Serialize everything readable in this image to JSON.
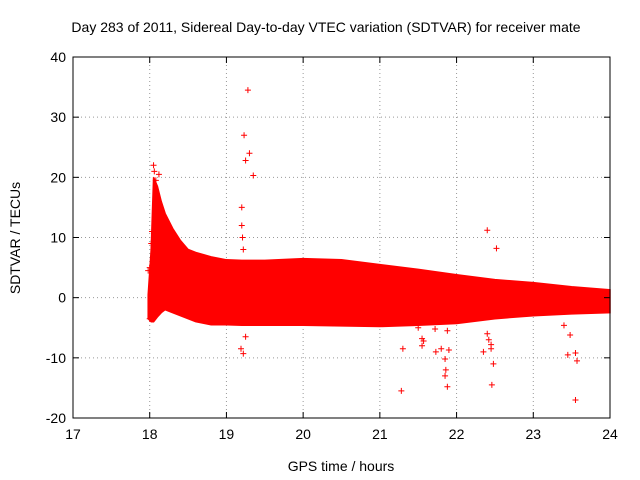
{
  "chart_data": {
    "type": "scatter",
    "title": "Day 283 of 2011, Sidereal Day-to-day VTEC variation (SDTVAR) for receiver mate",
    "xlabel": "GPS time / hours",
    "ylabel": "SDTVAR / TECUs",
    "xlim": [
      17,
      24
    ],
    "ylim": [
      -20,
      40
    ],
    "xticks": [
      17,
      18,
      19,
      20,
      21,
      22,
      23,
      24
    ],
    "yticks": [
      -20,
      -10,
      0,
      10,
      20,
      30,
      40
    ],
    "grid": true,
    "marker": "+",
    "color": "#ff0000",
    "envelope": {
      "name": "dense band (upper / lower bound)",
      "x": [
        17.98,
        18.02,
        18.05,
        18.1,
        18.15,
        18.2,
        18.3,
        18.4,
        18.5,
        18.6,
        18.8,
        19.0,
        19.2,
        19.5,
        20.0,
        20.5,
        21.0,
        21.5,
        22.0,
        22.5,
        23.0,
        23.5,
        24.0
      ],
      "upper": [
        0.5,
        8.0,
        20.0,
        18.5,
        16.0,
        14.0,
        11.5,
        9.5,
        8.0,
        7.5,
        6.8,
        6.3,
        6.2,
        6.2,
        6.5,
        6.3,
        5.5,
        4.7,
        3.8,
        3.0,
        2.5,
        1.8,
        1.3
      ],
      "lower": [
        -3.5,
        -4.0,
        -4.0,
        -3.2,
        -2.5,
        -2.0,
        -2.5,
        -3.0,
        -3.5,
        -4.0,
        -4.5,
        -4.5,
        -4.6,
        -4.6,
        -4.6,
        -4.7,
        -4.8,
        -4.6,
        -4.3,
        -3.5,
        -3.0,
        -2.7,
        -2.5
      ]
    },
    "points": [
      {
        "x": 17.98,
        "y": 4.5
      },
      {
        "x": 18.0,
        "y": 5.0
      },
      {
        "x": 18.02,
        "y": 9.0
      },
      {
        "x": 18.03,
        "y": 11.0
      },
      {
        "x": 18.05,
        "y": 22.0
      },
      {
        "x": 18.06,
        "y": 21.0
      },
      {
        "x": 18.08,
        "y": 19.5
      },
      {
        "x": 18.12,
        "y": 20.5
      },
      {
        "x": 18.1,
        "y": 14.0
      },
      {
        "x": 18.12,
        "y": 12.0
      },
      {
        "x": 18.02,
        "y": -2.5
      },
      {
        "x": 18.0,
        "y": -3.5
      },
      {
        "x": 18.25,
        "y": -0.5
      },
      {
        "x": 18.3,
        "y": 0.0
      },
      {
        "x": 19.2,
        "y": 15.0
      },
      {
        "x": 19.2,
        "y": 12.0
      },
      {
        "x": 19.21,
        "y": 10.0
      },
      {
        "x": 19.22,
        "y": 8.0
      },
      {
        "x": 19.19,
        "y": -8.5
      },
      {
        "x": 19.22,
        "y": -9.3
      },
      {
        "x": 19.25,
        "y": -6.5
      },
      {
        "x": 19.23,
        "y": 27.0
      },
      {
        "x": 19.28,
        "y": 34.5
      },
      {
        "x": 19.25,
        "y": 22.8
      },
      {
        "x": 19.3,
        "y": 24.0
      },
      {
        "x": 19.35,
        "y": 20.3
      },
      {
        "x": 21.3,
        "y": -8.5
      },
      {
        "x": 21.28,
        "y": -15.5
      },
      {
        "x": 21.5,
        "y": -5.0
      },
      {
        "x": 21.55,
        "y": -6.8
      },
      {
        "x": 21.57,
        "y": -7.2
      },
      {
        "x": 21.55,
        "y": -8.0
      },
      {
        "x": 21.72,
        "y": -5.2
      },
      {
        "x": 21.73,
        "y": -9.0
      },
      {
        "x": 21.8,
        "y": -8.5
      },
      {
        "x": 21.85,
        "y": -10.2
      },
      {
        "x": 21.86,
        "y": -12.0
      },
      {
        "x": 21.85,
        "y": -13.0
      },
      {
        "x": 21.88,
        "y": -14.8
      },
      {
        "x": 21.9,
        "y": -8.7
      },
      {
        "x": 21.88,
        "y": -5.5
      },
      {
        "x": 22.35,
        "y": -9.0
      },
      {
        "x": 22.4,
        "y": -6.0
      },
      {
        "x": 22.42,
        "y": -7.0
      },
      {
        "x": 22.45,
        "y": -8.5
      },
      {
        "x": 22.45,
        "y": -7.8
      },
      {
        "x": 22.48,
        "y": -11.0
      },
      {
        "x": 22.46,
        "y": -14.5
      },
      {
        "x": 22.4,
        "y": 11.2
      },
      {
        "x": 22.52,
        "y": 8.2
      },
      {
        "x": 23.4,
        "y": -4.6
      },
      {
        "x": 23.45,
        "y": -9.5
      },
      {
        "x": 23.48,
        "y": -6.2
      },
      {
        "x": 23.55,
        "y": -9.2
      },
      {
        "x": 23.57,
        "y": -10.5
      },
      {
        "x": 23.55,
        "y": -17.0
      },
      {
        "x": 23.9,
        "y": 1.0
      },
      {
        "x": 23.95,
        "y": -1.0
      }
    ]
  }
}
